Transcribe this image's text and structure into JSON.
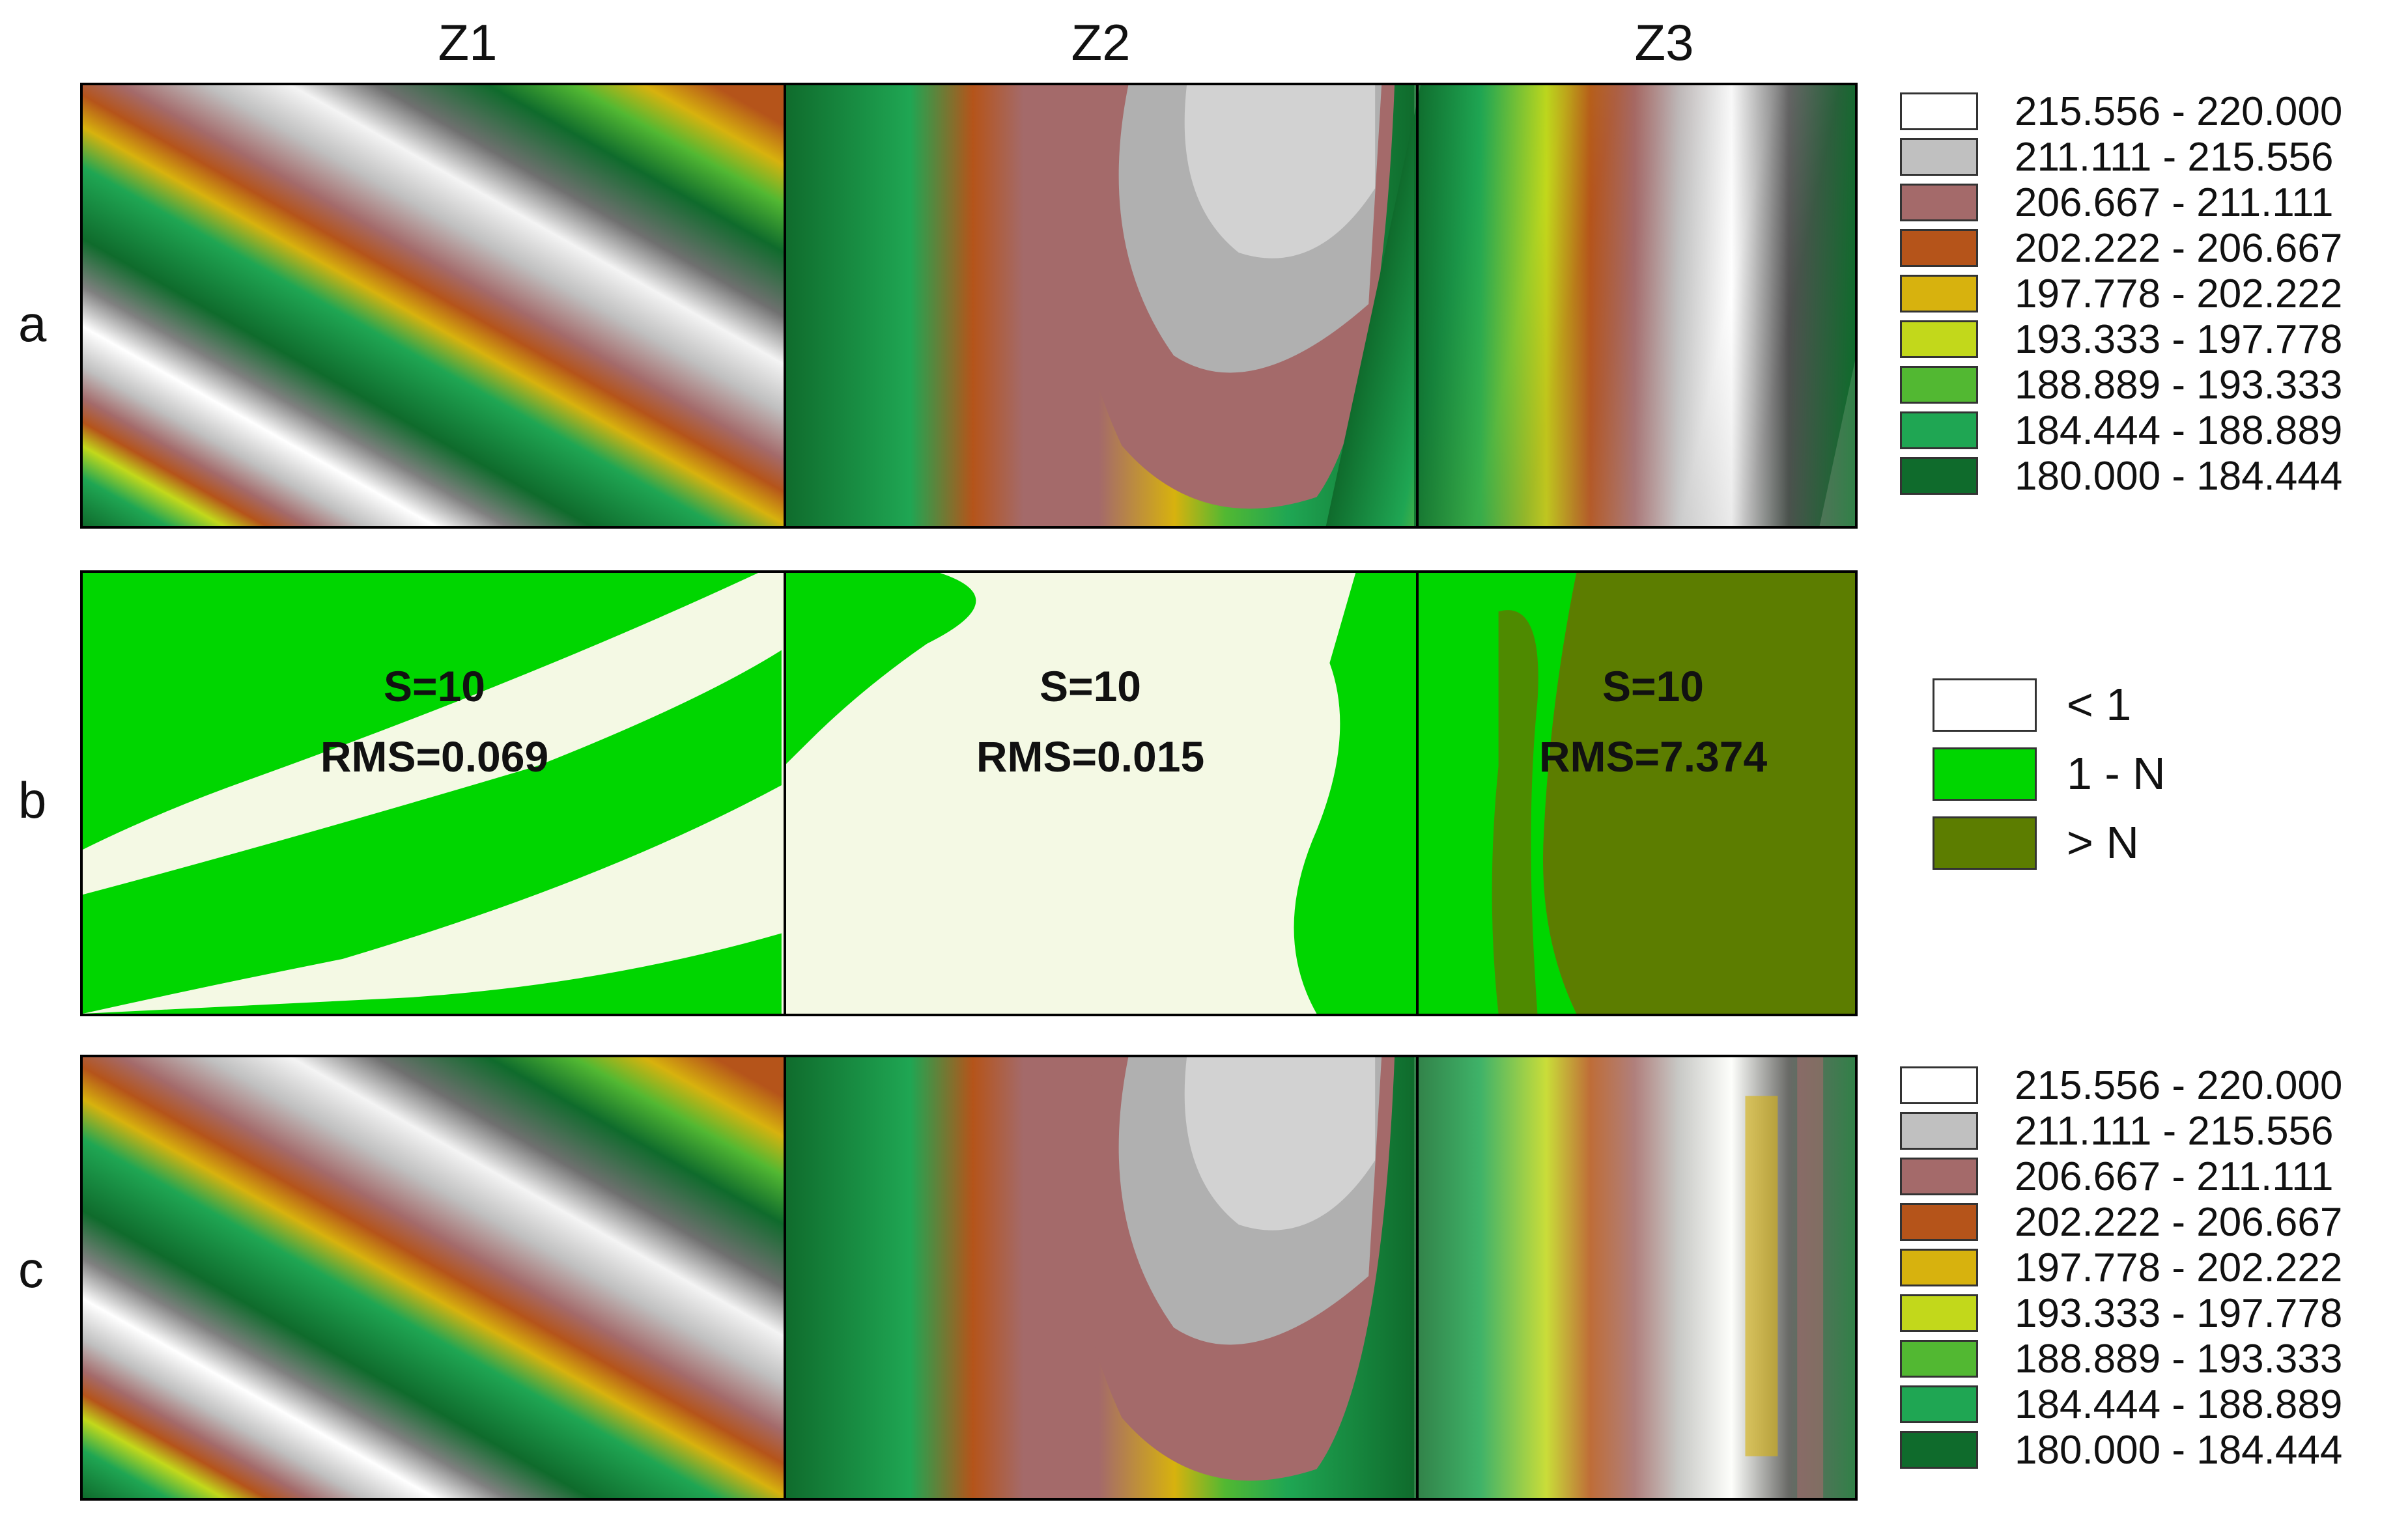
{
  "zones": [
    "Z1",
    "Z2",
    "Z3"
  ],
  "rows": [
    "a",
    "b",
    "c"
  ],
  "contour_legend": [
    {
      "label": "215.556 - 220.000",
      "color": "#ffffff"
    },
    {
      "label": "211.111 - 215.556",
      "color": "#c0c0c0"
    },
    {
      "label": "206.667 - 211.111",
      "color": "#a46a6a"
    },
    {
      "label": "202.222 - 206.667",
      "color": "#b5541a"
    },
    {
      "label": "197.778 - 202.222",
      "color": "#d7b20e"
    },
    {
      "label": "193.333 - 197.778",
      "color": "#c2d81b"
    },
    {
      "label": "188.889 - 193.333",
      "color": "#52b832"
    },
    {
      "label": "184.444 - 188.889",
      "color": "#1fa653"
    },
    {
      "label": "180.000 - 184.444",
      "color": "#0f6b2c"
    }
  ],
  "error_legend": [
    {
      "label": "< 1",
      "color": "#ffffff"
    },
    {
      "label": "1 - N",
      "color": "#00d600"
    },
    {
      "label": "> N",
      "color": "#5c7d00"
    }
  ],
  "stats": [
    {
      "s": "S=10",
      "rms": "RMS=0.069"
    },
    {
      "s": "S=10",
      "rms": "RMS=0.015"
    },
    {
      "s": "S=10",
      "rms": "RMS=7.374"
    }
  ]
}
